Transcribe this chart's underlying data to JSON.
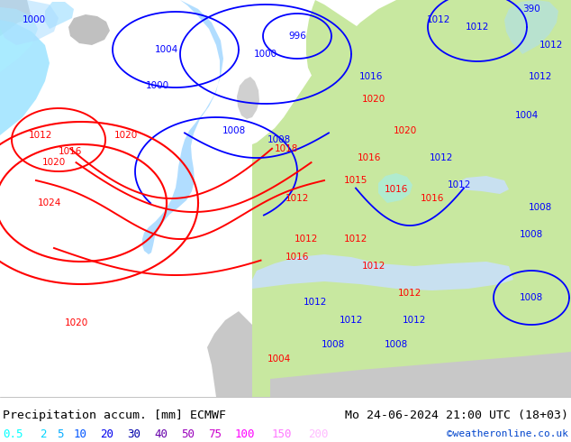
{
  "title_left": "Precipitation accum. [mm] ECMWF",
  "title_right": "Mo 24-06-2024 21:00 UTC (18+03)",
  "watermark": "©weatheronline.co.uk",
  "legend_values": [
    "0.5",
    "2",
    "5",
    "10",
    "20",
    "30",
    "40",
    "50",
    "75",
    "100",
    "150",
    "200"
  ],
  "legend_colors": [
    "#00ffff",
    "#00d4ff",
    "#00aaff",
    "#0055ff",
    "#0000ee",
    "#0000aa",
    "#6600aa",
    "#9900bb",
    "#cc00cc",
    "#ff00ff",
    "#ff77ff",
    "#ffbbff"
  ],
  "map_bg": "#e8e8e8",
  "land_green": "#c8e8a0",
  "land_gray": "#c8c8c8",
  "sea_light": "#ddeeff",
  "precip_light_cyan": "#aaeeff",
  "precip_cyan": "#55ccff",
  "precip_blue": "#3399ff",
  "fig_width": 6.34,
  "fig_height": 4.9,
  "dpi": 100,
  "bottom_bar_height": 0.102,
  "font_size_title": 9.5,
  "font_size_legend": 9,
  "font_size_watermark": 8
}
